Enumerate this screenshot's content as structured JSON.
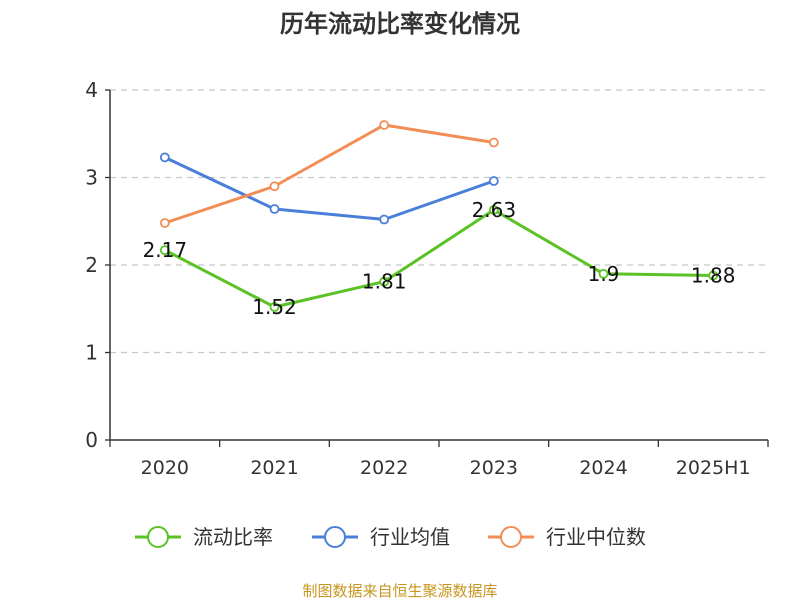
{
  "chart_data": {
    "type": "line",
    "title": "历年流动比率变化情况",
    "categories": [
      "2020",
      "2021",
      "2022",
      "2023",
      "2024",
      "2025H1"
    ],
    "ylim": [
      0,
      4
    ],
    "yticks": [
      0,
      1,
      2,
      3,
      4
    ],
    "grid": true,
    "legend_position": "bottom",
    "series": [
      {
        "name": "流动比率",
        "color": "#5bc225",
        "values": [
          2.17,
          1.52,
          1.81,
          2.63,
          1.9,
          1.88
        ],
        "labels": [
          "2.17",
          "1.52",
          "1.81",
          "2.63",
          "1.9",
          "1.88"
        ]
      },
      {
        "name": "行业均值",
        "color": "#4a7fd9",
        "values": [
          3.23,
          2.64,
          2.52,
          2.96,
          null,
          null
        ]
      },
      {
        "name": "行业中位数",
        "color": "#f28e55",
        "values": [
          2.48,
          2.9,
          3.6,
          3.4,
          null,
          null
        ]
      }
    ]
  },
  "source_text": "制图数据来自恒生聚源数据库",
  "source_color": "#c8961e"
}
